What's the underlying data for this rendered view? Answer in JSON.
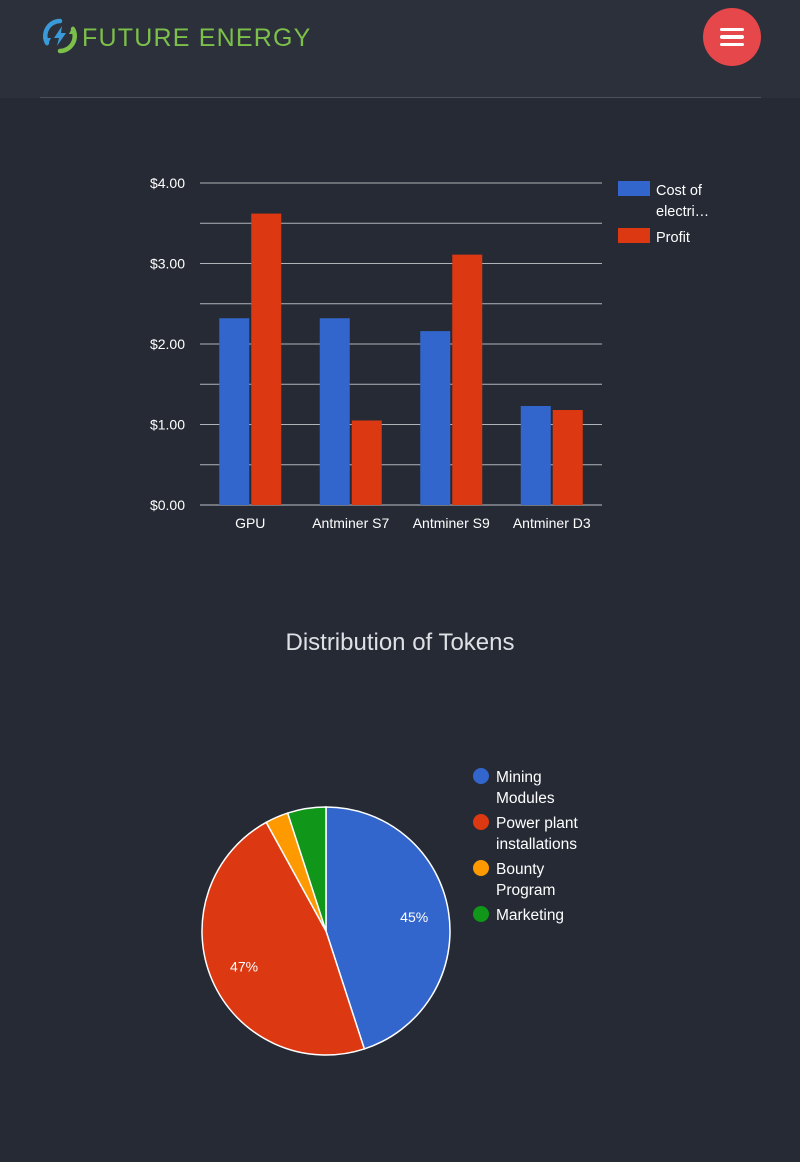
{
  "header": {
    "brand": "FUTURE ENERGY",
    "logo_icon": "lightning-recycle-icon",
    "menu_icon": "hamburger-menu-icon",
    "colors": {
      "background": "#2c303b",
      "brand_text": "#7cc04a",
      "menu_button": "#e5474b"
    }
  },
  "chart_data": [
    {
      "type": "bar",
      "title": "",
      "categories": [
        "GPU",
        "Antminer S7",
        "Antminer S9",
        "Antminer D3"
      ],
      "series": [
        {
          "name": "Cost of electri…",
          "values": [
            2.32,
            2.32,
            2.16,
            1.23
          ],
          "color": "#3366cc"
        },
        {
          "name": "Profit",
          "values": [
            3.62,
            1.05,
            3.11,
            1.18
          ],
          "color": "#dc3912"
        }
      ],
      "y_ticks": [
        "$0.00",
        "$1.00",
        "$2.00",
        "$3.00",
        "$4.00"
      ],
      "ylim": [
        0,
        4
      ],
      "grid": true,
      "legend": "right"
    },
    {
      "type": "pie",
      "title": "Distribution of Tokens",
      "labels": [
        "Mining Modules",
        "Power plant installations",
        "Bounty Program",
        "Marketing"
      ],
      "legend_lines": [
        [
          "Mining",
          "Modules"
        ],
        [
          "Power plant",
          "installations"
        ],
        [
          "Bounty",
          "Program"
        ],
        [
          "Marketing"
        ]
      ],
      "values": [
        45,
        47,
        3,
        5
      ],
      "slice_labels": [
        "45%",
        "47%",
        "",
        ""
      ],
      "colors": [
        "#3366cc",
        "#dc3912",
        "#ff9900",
        "#109618"
      ],
      "legend": "right"
    }
  ]
}
